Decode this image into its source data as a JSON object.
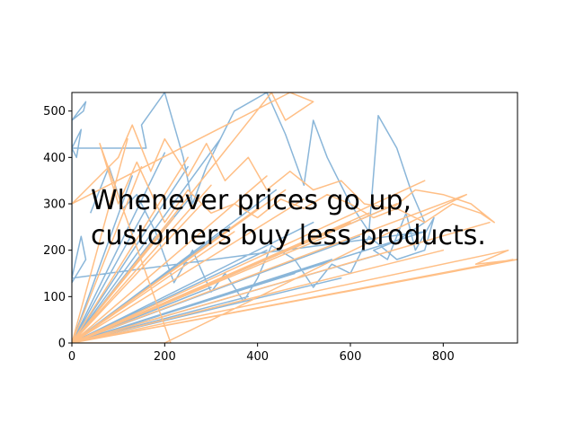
{
  "chart_data": {
    "type": "line",
    "title": "",
    "xlabel": "",
    "ylabel": "",
    "xlim": [
      0,
      960
    ],
    "ylim": [
      0,
      540
    ],
    "x_ticks": [
      "0",
      "200",
      "400",
      "600",
      "800"
    ],
    "y_ticks": [
      "0",
      "100",
      "200",
      "300",
      "400",
      "500"
    ],
    "annotation": "Whenever prices go up,\ncustomers buy less products.",
    "grid": false,
    "legend": "none",
    "series": [
      {
        "color": "#8ab6d9",
        "values": [
          [
            0,
            0
          ],
          [
            340,
            250
          ],
          [
            0,
            0
          ],
          [
            420,
            200
          ],
          [
            0,
            0
          ],
          [
            130,
            360
          ],
          [
            0,
            0
          ],
          [
            560,
            180
          ],
          [
            0,
            0
          ],
          [
            260,
            320
          ],
          [
            0,
            0
          ],
          [
            480,
            150
          ],
          [
            0,
            0
          ],
          [
            200,
            410
          ],
          [
            0,
            0
          ],
          [
            620,
            230
          ],
          [
            0,
            0
          ],
          [
            300,
            120
          ],
          [
            0,
            0
          ],
          [
            700,
            300
          ],
          [
            0,
            0
          ],
          [
            160,
            290
          ],
          [
            0,
            0
          ],
          [
            520,
            260
          ],
          [
            0,
            0
          ],
          [
            380,
            100
          ],
          [
            0,
            0
          ],
          [
            250,
            380
          ],
          [
            0,
            0
          ],
          [
            660,
            190
          ],
          [
            0,
            0
          ],
          [
            440,
            330
          ],
          [
            0,
            0
          ],
          [
            180,
            230
          ],
          [
            0,
            0
          ],
          [
            580,
            140
          ],
          [
            0,
            0
          ],
          [
            320,
            440
          ],
          [
            0,
            0
          ],
          [
            760,
            240
          ],
          [
            0,
            140
          ],
          [
            20,
            230
          ],
          [
            30,
            180
          ],
          [
            0,
            130
          ],
          [
            0,
            480
          ],
          [
            25,
            500
          ],
          [
            30,
            520
          ],
          [
            0,
            480
          ],
          [
            0,
            420
          ],
          [
            10,
            400
          ],
          [
            20,
            460
          ],
          [
            0,
            420
          ],
          [
            160,
            420
          ],
          [
            150,
            470
          ],
          [
            200,
            540
          ],
          [
            240,
            400
          ],
          [
            260,
            300
          ],
          [
            290,
            380
          ],
          [
            350,
            500
          ],
          [
            420,
            540
          ],
          [
            460,
            450
          ],
          [
            500,
            340
          ],
          [
            520,
            480
          ],
          [
            550,
            400
          ],
          [
            600,
            300
          ],
          [
            640,
            240
          ],
          [
            660,
            490
          ],
          [
            700,
            420
          ],
          [
            730,
            330
          ],
          [
            760,
            260
          ],
          [
            700,
            220
          ],
          [
            650,
            200
          ],
          [
            680,
            180
          ],
          [
            720,
            280
          ],
          [
            740,
            200
          ],
          [
            780,
            270
          ],
          [
            760,
            200
          ],
          [
            700,
            180
          ],
          [
            640,
            230
          ],
          [
            600,
            150
          ],
          [
            560,
            170
          ],
          [
            520,
            120
          ],
          [
            480,
            180
          ],
          [
            430,
            210
          ],
          [
            400,
            140
          ],
          [
            370,
            90
          ],
          [
            330,
            150
          ],
          [
            300,
            110
          ],
          [
            260,
            200
          ],
          [
            220,
            130
          ],
          [
            180,
            240
          ],
          [
            140,
            320
          ],
          [
            110,
            290
          ],
          [
            80,
            380
          ],
          [
            60,
            330
          ],
          [
            40,
            280
          ]
        ]
      },
      {
        "color": "#ffbf86",
        "values": [
          [
            0,
            0
          ],
          [
            400,
            290
          ],
          [
            0,
            0
          ],
          [
            500,
            310
          ],
          [
            0,
            0
          ],
          [
            300,
            340
          ],
          [
            0,
            0
          ],
          [
            600,
            260
          ],
          [
            0,
            0
          ],
          [
            220,
            270
          ],
          [
            0,
            0
          ],
          [
            700,
            300
          ],
          [
            0,
            0
          ],
          [
            350,
            240
          ],
          [
            0,
            0
          ],
          [
            800,
            200
          ],
          [
            0,
            0
          ],
          [
            250,
            400
          ],
          [
            0,
            0
          ],
          [
            460,
            330
          ],
          [
            0,
            0
          ],
          [
            900,
            260
          ],
          [
            0,
            0
          ],
          [
            180,
            220
          ],
          [
            0,
            0
          ],
          [
            950,
            180
          ],
          [
            0,
            0
          ],
          [
            550,
            230
          ],
          [
            0,
            0
          ],
          [
            280,
            300
          ],
          [
            0,
            0
          ],
          [
            760,
            350
          ],
          [
            0,
            0
          ],
          [
            150,
            380
          ],
          [
            0,
            0
          ],
          [
            640,
            280
          ],
          [
            0,
            0
          ],
          [
            420,
            360
          ],
          [
            0,
            0
          ],
          [
            120,
            440
          ],
          [
            0,
            0
          ],
          [
            850,
            320
          ],
          [
            200,
            0
          ],
          [
            0,
            0
          ],
          [
            220,
            -20
          ],
          [
            60,
            430
          ],
          [
            100,
            300
          ],
          [
            140,
            390
          ],
          [
            200,
            260
          ],
          [
            250,
            330
          ],
          [
            300,
            280
          ],
          [
            350,
            300
          ],
          [
            400,
            270
          ],
          [
            450,
            310
          ],
          [
            500,
            290
          ],
          [
            550,
            320
          ],
          [
            600,
            300
          ],
          [
            650,
            270
          ],
          [
            700,
            290
          ],
          [
            760,
            260
          ],
          [
            820,
            300
          ],
          [
            880,
            280
          ],
          [
            910,
            260
          ],
          [
            860,
            300
          ],
          [
            800,
            320
          ],
          [
            740,
            330
          ],
          [
            690,
            290
          ],
          [
            630,
            300
          ],
          [
            580,
            350
          ],
          [
            520,
            330
          ],
          [
            470,
            370
          ],
          [
            420,
            330
          ],
          [
            380,
            400
          ],
          [
            330,
            350
          ],
          [
            290,
            430
          ],
          [
            250,
            360
          ],
          [
            200,
            440
          ],
          [
            170,
            370
          ],
          [
            130,
            470
          ],
          [
            100,
            400
          ],
          [
            60,
            360
          ],
          [
            0,
            300
          ],
          [
            470,
            540
          ],
          [
            520,
            520
          ],
          [
            460,
            480
          ],
          [
            430,
            540
          ],
          [
            0,
            0
          ],
          [
            960,
            180
          ],
          [
            870,
            170
          ],
          [
            940,
            200
          ],
          [
            0,
            0
          ]
        ]
      }
    ]
  }
}
